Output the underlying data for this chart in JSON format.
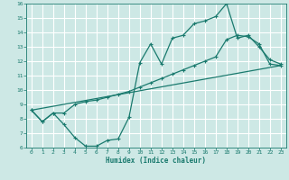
{
  "xlabel": "Humidex (Indice chaleur)",
  "xlim": [
    -0.5,
    23.5
  ],
  "ylim": [
    6,
    16
  ],
  "xticks": [
    0,
    1,
    2,
    3,
    4,
    5,
    6,
    7,
    8,
    9,
    10,
    11,
    12,
    13,
    14,
    15,
    16,
    17,
    18,
    19,
    20,
    21,
    22,
    23
  ],
  "yticks": [
    6,
    7,
    8,
    9,
    10,
    11,
    12,
    13,
    14,
    15,
    16
  ],
  "bg_color": "#cde8e5",
  "line_color": "#1a7a6e",
  "grid_color": "#ffffff",
  "line1_x": [
    0,
    1,
    2,
    3,
    4,
    5,
    6,
    7,
    8,
    9,
    10,
    11,
    12,
    13,
    14,
    15,
    16,
    17,
    18,
    19,
    20,
    21,
    22,
    23
  ],
  "line1_y": [
    8.6,
    7.8,
    8.4,
    7.6,
    6.7,
    6.1,
    6.1,
    6.5,
    6.6,
    8.1,
    11.9,
    13.2,
    11.8,
    13.6,
    13.8,
    14.6,
    14.8,
    15.1,
    16.0,
    13.6,
    13.8,
    13.0,
    12.1,
    11.8
  ],
  "line2_x": [
    0,
    1,
    2,
    3,
    4,
    5,
    6,
    7,
    8,
    9,
    10,
    11,
    12,
    13,
    14,
    15,
    16,
    17,
    18,
    19,
    20,
    21,
    22,
    23
  ],
  "line2_y": [
    8.6,
    7.8,
    8.4,
    8.4,
    9.0,
    9.2,
    9.3,
    9.5,
    9.7,
    9.9,
    10.2,
    10.5,
    10.8,
    11.1,
    11.4,
    11.7,
    12.0,
    12.3,
    13.5,
    13.8,
    13.7,
    13.2,
    11.8,
    11.7
  ],
  "line3_x": [
    0,
    23
  ],
  "line3_y": [
    8.6,
    11.7
  ]
}
